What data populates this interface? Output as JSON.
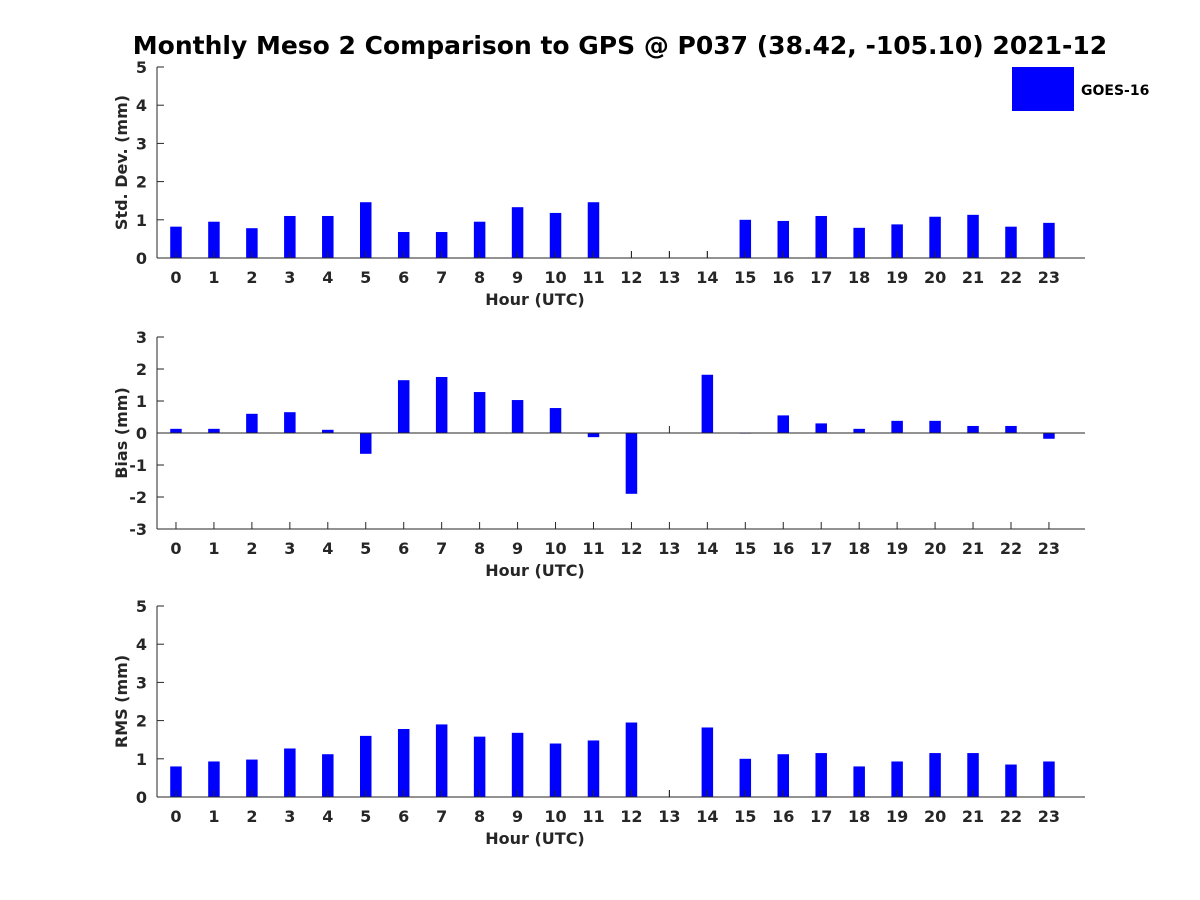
{
  "figure": {
    "title": "Monthly Meso 2 Comparison to GPS @ P037 (38.42, -105.10) 2021-12"
  },
  "legend": {
    "label": "GOES-16",
    "color": "#0000ff"
  },
  "colors": {
    "bar": "#0000ff",
    "axis": "#262626"
  },
  "chart_data": [
    {
      "type": "bar",
      "ylabel": "Std. Dev. (mm)",
      "xlabel": "Hour (UTC)",
      "ylim": [
        0,
        5
      ],
      "yticks": [
        0,
        1,
        2,
        3,
        4,
        5
      ],
      "categories": [
        0,
        1,
        2,
        3,
        4,
        5,
        6,
        7,
        8,
        9,
        10,
        11,
        12,
        13,
        14,
        15,
        16,
        17,
        18,
        19,
        20,
        21,
        22,
        23
      ],
      "series": [
        {
          "name": "GOES-16",
          "values": [
            0.82,
            0.95,
            0.78,
            1.1,
            1.1,
            1.46,
            0.68,
            0.68,
            0.95,
            1.33,
            1.18,
            1.46,
            null,
            null,
            null,
            1.0,
            0.97,
            1.1,
            0.79,
            0.88,
            1.08,
            1.13,
            0.82,
            0.92
          ]
        }
      ],
      "grid": false
    },
    {
      "type": "bar",
      "ylabel": "Bias (mm)",
      "xlabel": "Hour (UTC)",
      "ylim": [
        -3,
        3
      ],
      "yticks": [
        -3,
        -2,
        -1,
        0,
        1,
        2,
        3
      ],
      "categories": [
        0,
        1,
        2,
        3,
        4,
        5,
        6,
        7,
        8,
        9,
        10,
        11,
        12,
        13,
        14,
        15,
        16,
        17,
        18,
        19,
        20,
        21,
        22,
        23
      ],
      "series": [
        {
          "name": "GOES-16",
          "values": [
            0.13,
            0.13,
            0.6,
            0.65,
            0.1,
            -0.65,
            1.65,
            1.75,
            1.28,
            1.03,
            0.78,
            -0.13,
            -1.9,
            null,
            1.82,
            0.0,
            0.55,
            0.3,
            0.13,
            0.38,
            0.38,
            0.22,
            0.22,
            -0.18
          ]
        }
      ],
      "grid": false
    },
    {
      "type": "bar",
      "ylabel": "RMS (mm)",
      "xlabel": "Hour (UTC)",
      "ylim": [
        0,
        5
      ],
      "yticks": [
        0,
        1,
        2,
        3,
        4,
        5
      ],
      "categories": [
        0,
        1,
        2,
        3,
        4,
        5,
        6,
        7,
        8,
        9,
        10,
        11,
        12,
        13,
        14,
        15,
        16,
        17,
        18,
        19,
        20,
        21,
        22,
        23
      ],
      "series": [
        {
          "name": "GOES-16",
          "values": [
            0.8,
            0.93,
            0.98,
            1.27,
            1.12,
            1.6,
            1.78,
            1.9,
            1.58,
            1.68,
            1.4,
            1.48,
            1.95,
            null,
            1.82,
            1.0,
            1.12,
            1.15,
            0.8,
            0.93,
            1.15,
            1.15,
            0.85,
            0.93
          ]
        }
      ],
      "grid": false
    }
  ]
}
